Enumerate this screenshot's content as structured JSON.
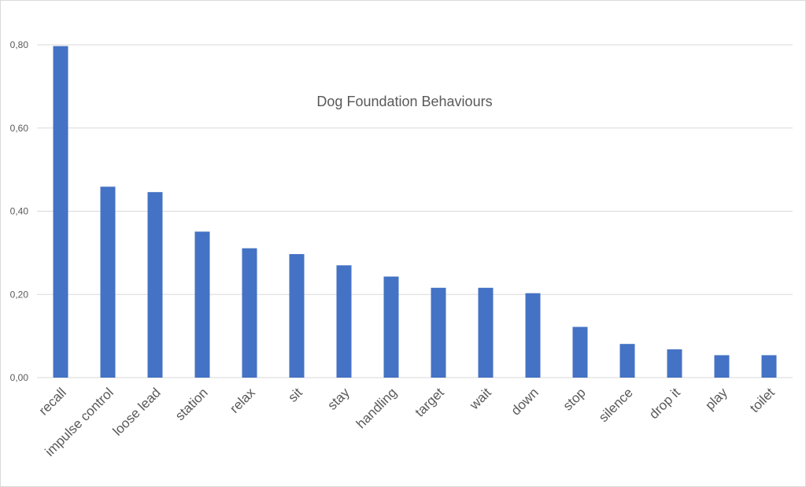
{
  "chart_data": {
    "type": "bar",
    "title": "Dog Foundation Behaviours",
    "xlabel": "",
    "ylabel": "",
    "categories": [
      "recall",
      "impulse control",
      "loose lead",
      "station",
      "relax",
      "sit",
      "stay",
      "handling",
      "target",
      "wait",
      "down",
      "stop",
      "silence",
      "drop it",
      "play",
      "toilet"
    ],
    "values": [
      0.797,
      0.459,
      0.446,
      0.351,
      0.311,
      0.297,
      0.27,
      0.243,
      0.216,
      0.216,
      0.203,
      0.122,
      0.081,
      0.068,
      0.054,
      0.054
    ],
    "ylim": [
      0,
      0.8
    ],
    "yticks": [
      "0,00",
      "0,20",
      "0,40",
      "0,60",
      "0,80"
    ],
    "grid": true,
    "bar_color": "#4472c4",
    "grid_color": "#d9d9d9"
  }
}
